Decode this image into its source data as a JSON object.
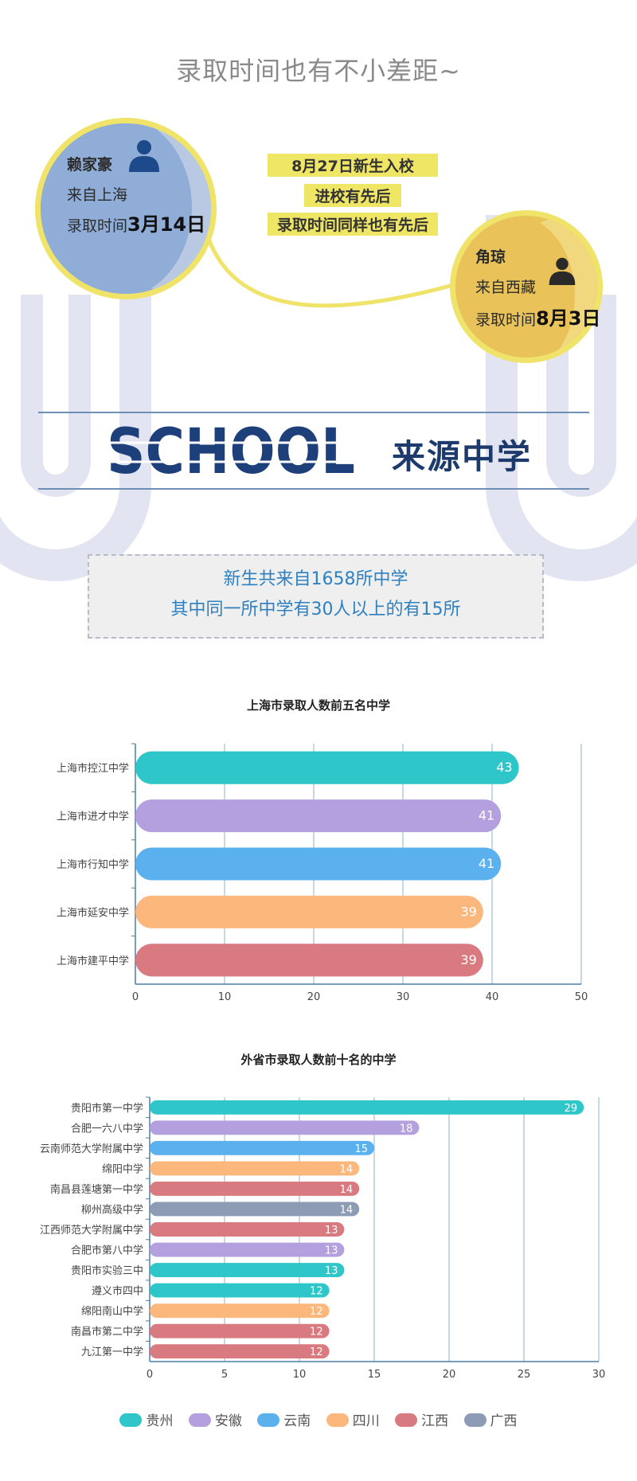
{
  "header": {
    "title": "录取时间也有不小差距~"
  },
  "students": [
    {
      "name": "赖家豪",
      "from": "来自上海",
      "time_prefix": "录取时间",
      "time_value": "3月14日"
    },
    {
      "name": "角琼",
      "from": "来自西藏",
      "time_prefix": "录取时间",
      "time_value": "8月3日"
    }
  ],
  "notes": [
    "8月27日新生入校",
    "进校有先后",
    "录取时间同样也有先后"
  ],
  "section": {
    "school_word": "SCHOOL",
    "title": "来源中学"
  },
  "info": {
    "line1": "新生共来自1658所中学",
    "line2": "其中同一所中学有30人以上的有15所"
  },
  "colors": {
    "贵州": "#2ec6c9",
    "安徽": "#b4a0de",
    "云南": "#5bb0ee",
    "四川": "#fcb87c",
    "江西": "#d97a80",
    "广西": "#8d9bb5",
    "accent_yellow": "#f0e665",
    "axis": "#4a7ea6"
  },
  "chart_data": [
    {
      "type": "bar",
      "orientation": "horizontal",
      "title": "上海市录取人数前五名中学",
      "categories": [
        "上海市控江中学",
        "上海市进才中学",
        "上海市行知中学",
        "上海市延安中学",
        "上海市建平中学"
      ],
      "values": [
        43,
        41,
        41,
        39,
        39
      ],
      "bar_colors": [
        "#2ec6c9",
        "#b4a0de",
        "#5bb0ee",
        "#fcb87c",
        "#d97a80"
      ],
      "xlim": [
        0,
        50
      ],
      "xticks": [
        0,
        10,
        20,
        30,
        40,
        50
      ],
      "grid": true
    },
    {
      "type": "bar",
      "orientation": "horizontal",
      "title": "外省市录取人数前十名的中学",
      "categories": [
        "贵阳市第一中学",
        "合肥一六八中学",
        "云南师范大学附属中学",
        "绵阳中学",
        "南昌县莲塘第一中学",
        "柳州高级中学",
        "江西师范大学附属中学",
        "合肥市第八中学",
        "贵阳市实验三中",
        "遵义市四中",
        "绵阳南山中学",
        "南昌市第二中学",
        "九江第一中学"
      ],
      "values": [
        29,
        18,
        15,
        14,
        14,
        14,
        13,
        13,
        13,
        12,
        12,
        12,
        12
      ],
      "provinces": [
        "贵州",
        "安徽",
        "云南",
        "四川",
        "江西",
        "广西",
        "江西",
        "安徽",
        "贵州",
        "贵州",
        "四川",
        "江西",
        "江西"
      ],
      "xlim": [
        0,
        30
      ],
      "xticks": [
        0,
        5,
        10,
        15,
        20,
        25,
        30
      ],
      "grid": true,
      "legend": {
        "position": "bottom",
        "entries": [
          "贵州",
          "安徽",
          "云南",
          "四川",
          "江西",
          "广西"
        ]
      }
    }
  ]
}
